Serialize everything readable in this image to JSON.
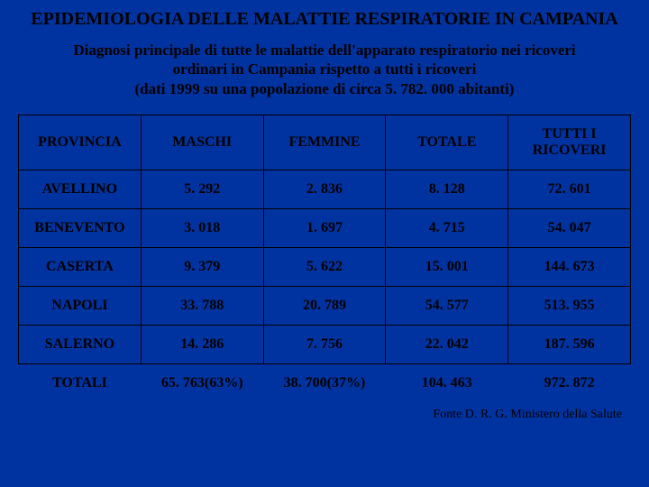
{
  "background_color": "#0033a0",
  "text_color": "#000000",
  "border_color": "#000000",
  "font_family": "Times New Roman",
  "title": "EPIDEMIOLOGIA DELLE MALATTIE RESPIRATORIE IN CAMPANIA",
  "title_fontsize": 20,
  "subtitle_line1": "Diagnosi principale di tutte le malattie dell'apparato respiratorio nei ricoveri",
  "subtitle_line2": "ordinari in Campania rispetto a tutti i ricoveri",
  "subtitle_line3": "(dati 1999 su una popolazione di circa  5. 782. 000 abitanti)",
  "subtitle_fontsize": 17,
  "table": {
    "type": "table",
    "cell_fontsize": 16,
    "columns": [
      "PROVINCIA",
      "MASCHI",
      "FEMMINE",
      "TOTALE",
      "TUTTI I RICOVERI"
    ],
    "rows": [
      [
        "AVELLINO",
        "5. 292",
        "2. 836",
        "8. 128",
        "72. 601"
      ],
      [
        "BENEVENTO",
        "3. 018",
        "1. 697",
        "4. 715",
        "54. 047"
      ],
      [
        "CASERTA",
        "9. 379",
        "5. 622",
        "15. 001",
        "144. 673"
      ],
      [
        "NAPOLI",
        "33. 788",
        "20. 789",
        "54. 577",
        "513. 955"
      ],
      [
        "SALERNO",
        "14. 286",
        "7. 756",
        "22. 042",
        "187. 596"
      ]
    ],
    "totals": [
      "TOTALI",
      "65. 763(63%)",
      "38. 700(37%)",
      "104. 463",
      "972. 872"
    ]
  },
  "footer": "Fonte D. R. G. Ministero della Salute",
  "footer_fontsize": 14
}
